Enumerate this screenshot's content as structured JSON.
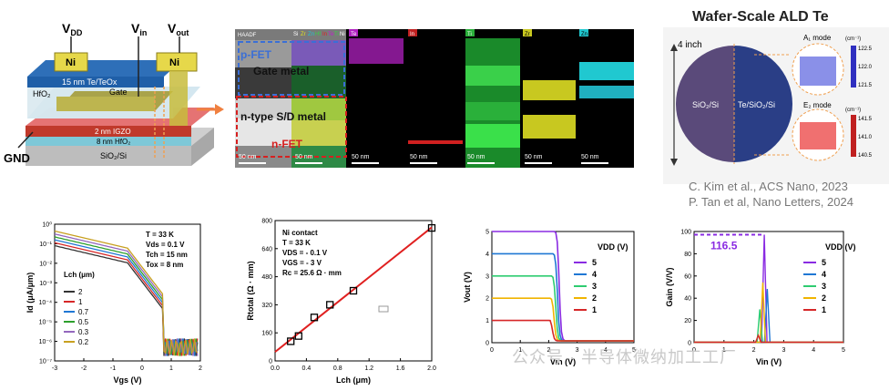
{
  "device": {
    "vdd": "V",
    "vdd_sub": "DD",
    "vin": "V",
    "vin_sub": "in",
    "vout": "V",
    "vout_sub": "out",
    "ni1": "Ni",
    "ni2": "Ni",
    "te_layer": "15 nm Te/TeOx",
    "hfo2": "HfO₂",
    "gate": "Gate",
    "igzo": "2 nm IGZO",
    "hfo2_8": "8 nm HfO₂",
    "sio2": "SiO₂/Si",
    "gnd": "GND"
  },
  "eds": {
    "haadf_label": "HAADF",
    "legend": [
      "Si",
      "Zr",
      "Zn",
      "Hf",
      "In",
      "Te",
      "Ti",
      "Ni"
    ],
    "maps": [
      "Te",
      "In",
      "Ti",
      "Zr",
      "Zn"
    ],
    "pfet": "p-FET",
    "gate_metal": "Gate metal",
    "ntype": "n-type S/D metal",
    "nfet": "n-FET",
    "scale": "50 nm"
  },
  "wafer": {
    "title": "Wafer-Scale ALD Te",
    "size": "4 inch",
    "left_label": "SiO₂/Si",
    "right_label": "Te/SiO₂/Si",
    "mode1": "A₁ mode",
    "mode2": "E₂ mode",
    "unit": "(cm⁻¹)",
    "cbar1": [
      "122.5",
      "122.0",
      "121.5"
    ],
    "cbar2": [
      "141.5",
      "141.0",
      "140.5"
    ]
  },
  "citations": [
    "C. Kim et al., ACS Nano, 2023",
    "P. Tan et al, Nano Letters, 2024"
  ],
  "watermark": "公众号 · 半导体微纳加工工厂",
  "chart_data": [
    {
      "type": "line",
      "title": "",
      "xlabel": "Vgs (V)",
      "ylabel": "Id (μA/μm)",
      "xlim": [
        -3,
        2
      ],
      "ylim_log10": [
        -7,
        0
      ],
      "xticks": [
        "-3",
        "-2",
        "-1",
        "0",
        "1",
        "2"
      ],
      "yticks": [
        "10⁰",
        "10⁻¹",
        "10⁻²",
        "10⁻³",
        "10⁻⁴",
        "10⁻⁵",
        "10⁻⁶",
        "10⁻⁷"
      ],
      "legend_title": "Lch (μm)",
      "annotations": [
        "T = 33 K",
        "Vds = 0.1 V",
        "Tch = 15 nm",
        "Tox = 8 nm"
      ],
      "series": [
        {
          "name": "2",
          "color": "#333333",
          "on_log": -1.1
        },
        {
          "name": "1",
          "color": "#d62728",
          "on_log": -0.95
        },
        {
          "name": "0.7",
          "color": "#1f77d4",
          "on_log": -0.8
        },
        {
          "name": "0.5",
          "color": "#2ca02c",
          "on_log": -0.65
        },
        {
          "name": "0.3",
          "color": "#9467bd",
          "on_log": -0.5
        },
        {
          "name": "0.2",
          "color": "#c8a020",
          "on_log": -0.35
        }
      ]
    },
    {
      "type": "scatter",
      "xlabel": "Lch (μm)",
      "ylabel": "Rtotal (Ω · mm)",
      "xlim": [
        0,
        2
      ],
      "ylim": [
        0,
        800
      ],
      "xticks": [
        "0.0",
        "0.4",
        "0.8",
        "1.2",
        "1.6",
        "2.0"
      ],
      "yticks": [
        "0",
        "160",
        "320",
        "480",
        "640",
        "800"
      ],
      "annotations": [
        "Ni contact",
        "T = 33 K",
        "VDS = - 0.1 V",
        "VGS = - 3 V",
        "Rc = 25.6 Ω · mm"
      ],
      "x": [
        0.2,
        0.3,
        0.5,
        0.7,
        1.0,
        2.0
      ],
      "y": [
        112,
        142,
        248,
        320,
        400,
        758
      ],
      "fit": {
        "intercept": 51.2,
        "slope": 355
      }
    },
    {
      "type": "line",
      "xlabel": "Vin (V)",
      "ylabel": "Vout (V)",
      "xlim": [
        0,
        5
      ],
      "ylim": [
        0,
        5
      ],
      "xticks": [
        "0",
        "1",
        "2",
        "3",
        "4",
        "5"
      ],
      "yticks": [
        "0",
        "1",
        "2",
        "3",
        "4",
        "5"
      ],
      "legend_title": "VDD (V)",
      "series": [
        {
          "name": "5",
          "color": "#8a2be2",
          "vdd": 5
        },
        {
          "name": "4",
          "color": "#1f77d4",
          "vdd": 4
        },
        {
          "name": "3",
          "color": "#2ecc71",
          "vdd": 3
        },
        {
          "name": "2",
          "color": "#f0b400",
          "vdd": 2
        },
        {
          "name": "1",
          "color": "#d62728",
          "vdd": 1
        }
      ]
    },
    {
      "type": "line",
      "xlabel": "Vin (V)",
      "ylabel": "Gain (V/V)",
      "xlim": [
        0,
        5
      ],
      "ylim": [
        0,
        120
      ],
      "xticks": [
        "0",
        "1",
        "2",
        "3",
        "4",
        "5"
      ],
      "yticks": [
        "0",
        "20",
        "40",
        "60",
        "80",
        "100"
      ],
      "legend_title": "VDD (V)",
      "peak_label": "116.5",
      "series": [
        {
          "name": "5",
          "color": "#8a2be2",
          "peak": 116.5,
          "vpk": 2.35
        },
        {
          "name": "4",
          "color": "#1f77d4",
          "peak": 58,
          "vpk": 2.45
        },
        {
          "name": "3",
          "color": "#2ecc71",
          "peak": 36,
          "vpk": 2.2
        },
        {
          "name": "2",
          "color": "#f0b400",
          "peak": 65,
          "vpk": 2.3
        },
        {
          "name": "1",
          "color": "#d62728",
          "peak": 8,
          "vpk": 2.15
        }
      ]
    }
  ]
}
